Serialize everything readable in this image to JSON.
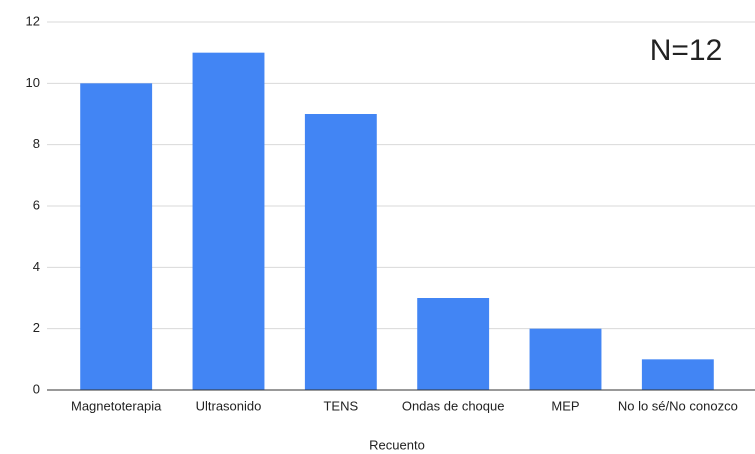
{
  "chart_data": {
    "type": "bar",
    "annotation": "N=12",
    "x_label": "Recuento",
    "categories": [
      "Magnetoterapia",
      "Ultrasonido",
      "TENS",
      "Ondas de choque",
      "MEP",
      "No lo sé/No conozco"
    ],
    "values": [
      10,
      11,
      9,
      3,
      2,
      1
    ],
    "color": "#4285f4",
    "ylim": [
      0,
      12
    ],
    "yticks": [
      0,
      2,
      4,
      6,
      8,
      10,
      12
    ],
    "grid": true
  }
}
